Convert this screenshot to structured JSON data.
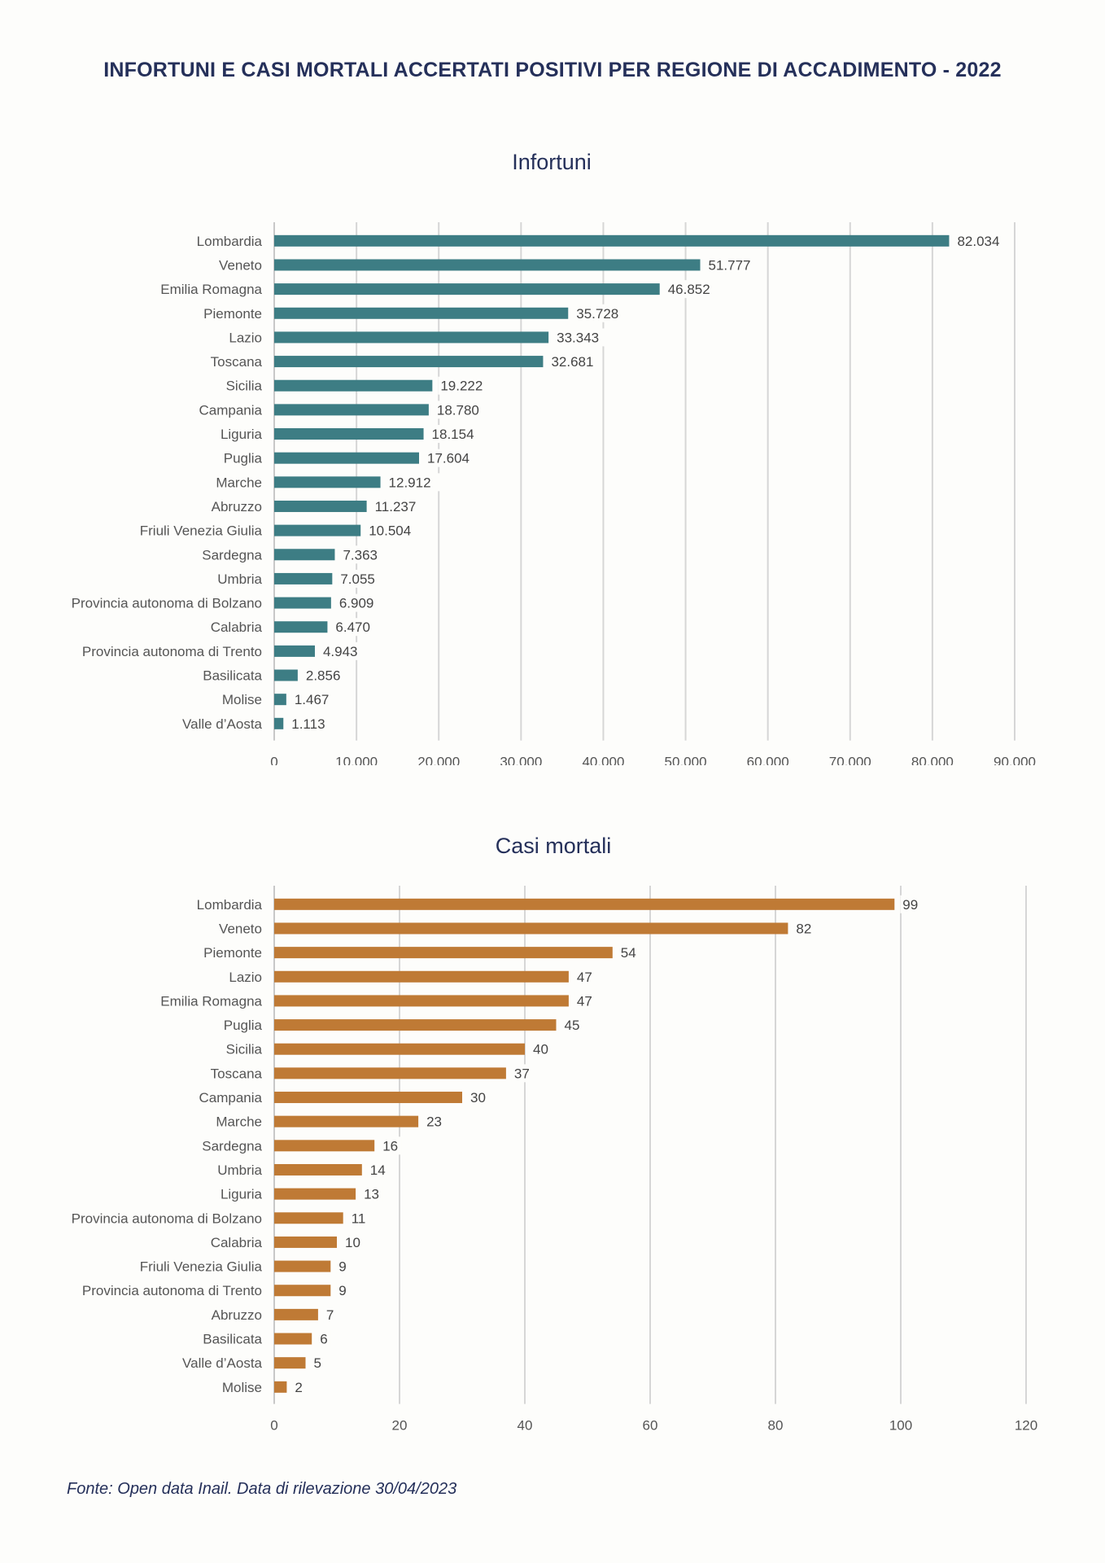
{
  "page": {
    "title": "INFORTUNI E CASI MORTALI ACCERTATI POSITIVI PER REGIONE DI ACCADIMENTO - 2022",
    "source": "Fonte: Open data Inail. Data di rilevazione 30/04/2023"
  },
  "colors": {
    "infortuni_bar": "#3d7d84",
    "mortali_bar": "#bf7a35",
    "grid": "#d3d3d3",
    "title": "#25305a"
  },
  "chart_data": [
    {
      "type": "bar",
      "orientation": "horizontal",
      "title": "Infortuni",
      "categories": [
        "Lombardia",
        "Veneto",
        "Emilia Romagna",
        "Piemonte",
        "Lazio",
        "Toscana",
        "Sicilia",
        "Campania",
        "Liguria",
        "Puglia",
        "Marche",
        "Abruzzo",
        "Friuli Venezia Giulia",
        "Sardegna",
        "Umbria",
        "Provincia autonoma di Bolzano",
        "Calabria",
        "Provincia autonoma di Trento",
        "Basilicata",
        "Molise",
        "Valle d’Aosta"
      ],
      "values": [
        82034,
        51777,
        46852,
        35728,
        33343,
        32681,
        19222,
        18780,
        18154,
        17604,
        12912,
        11237,
        10504,
        7363,
        7055,
        6909,
        6470,
        4943,
        2856,
        1467,
        1113
      ],
      "value_labels": [
        "82.034",
        "51.777",
        "46.852",
        "35.728",
        "33.343",
        "32.681",
        "19.222",
        "18.780",
        "18.154",
        "17.604",
        "12.912",
        "11.237",
        "10.504",
        "7.363",
        "7.055",
        "6.909",
        "6.470",
        "4.943",
        "2.856",
        "1.467",
        "1.113"
      ],
      "xlim": [
        0,
        90000
      ],
      "xticks": [
        "0",
        "10.000",
        "20.000",
        "30.000",
        "40.000",
        "50.000",
        "60.000",
        "70.000",
        "80.000",
        "90.000"
      ],
      "grid": "vertical",
      "color": "#3d7d84"
    },
    {
      "type": "bar",
      "orientation": "horizontal",
      "title": "Casi mortali",
      "categories": [
        "Lombardia",
        "Veneto",
        "Piemonte",
        "Lazio",
        "Emilia Romagna",
        "Puglia",
        "Sicilia",
        "Toscana",
        "Campania",
        "Marche",
        "Sardegna",
        "Umbria",
        "Liguria",
        "Provincia autonoma di Bolzano",
        "Calabria",
        "Friuli Venezia Giulia",
        "Provincia autonoma di Trento",
        "Abruzzo",
        "Basilicata",
        "Valle d’Aosta",
        "Molise"
      ],
      "values": [
        99,
        82,
        54,
        47,
        47,
        45,
        40,
        37,
        30,
        23,
        16,
        14,
        13,
        11,
        10,
        9,
        9,
        7,
        6,
        5,
        2
      ],
      "value_labels": [
        "99",
        "82",
        "54",
        "47",
        "47",
        "45",
        "40",
        "37",
        "30",
        "23",
        "16",
        "14",
        "13",
        "11",
        "10",
        "9",
        "9",
        "7",
        "6",
        "5",
        "2"
      ],
      "xlim": [
        0,
        120
      ],
      "xticks": [
        "0",
        "20",
        "40",
        "60",
        "80",
        "100",
        "120"
      ],
      "grid": "vertical",
      "color": "#bf7a35"
    }
  ]
}
